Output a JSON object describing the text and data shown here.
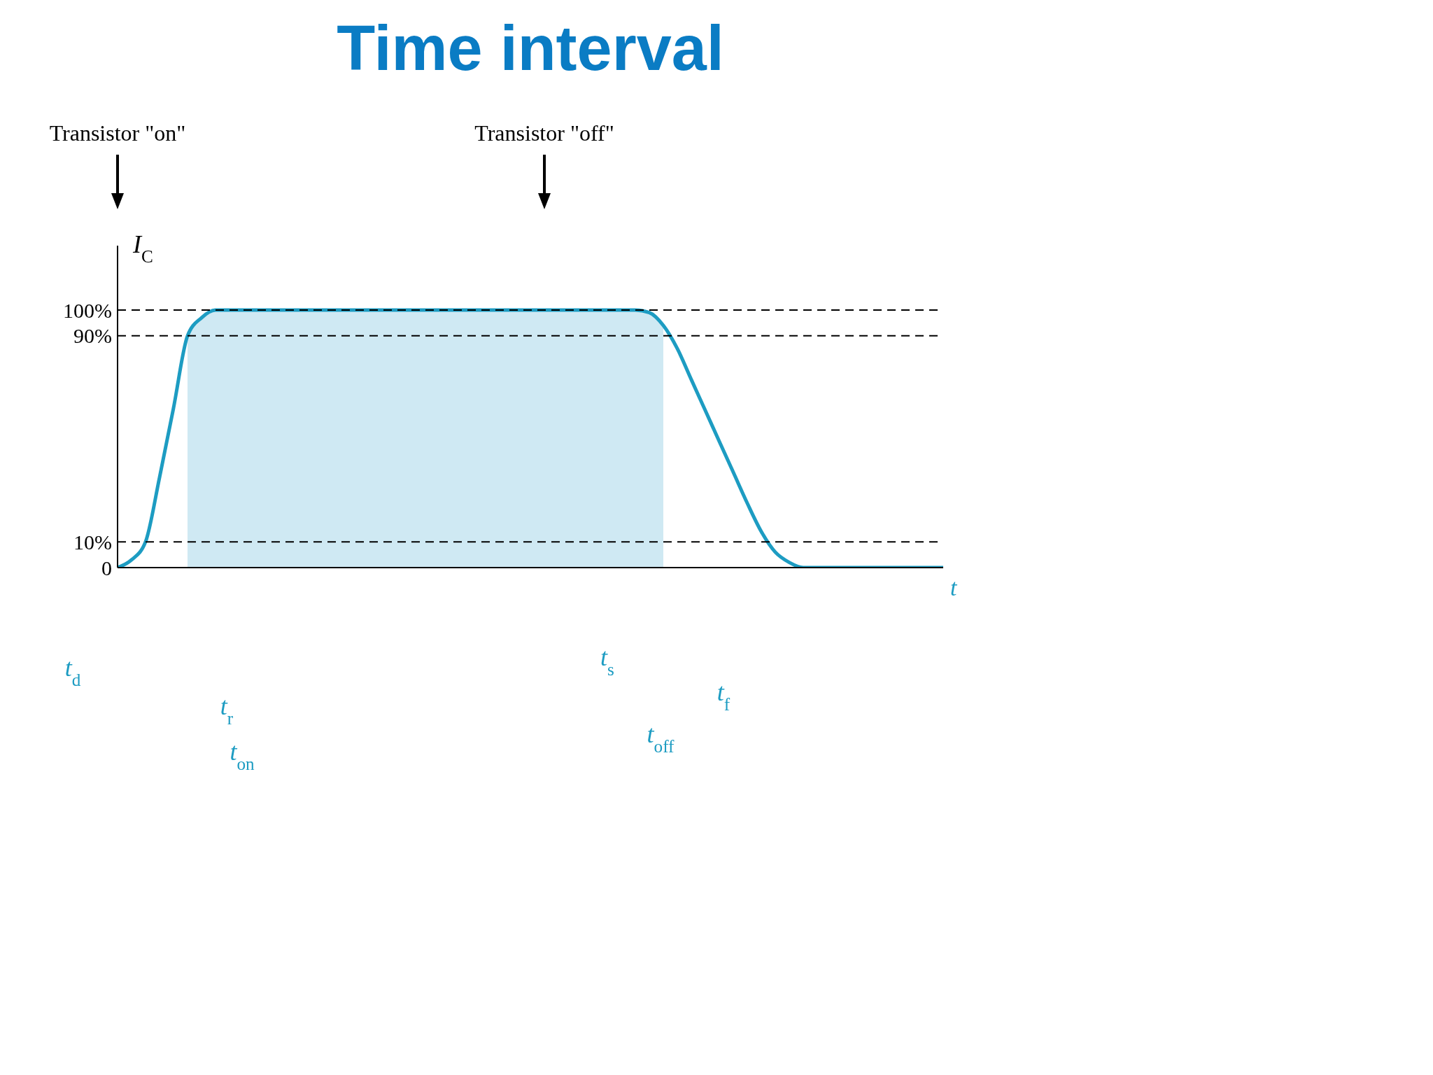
{
  "chart_data": {
    "type": "line",
    "title": "Time interval",
    "xlabel": "t",
    "ylabel": "I$_{C}$",
    "categories": [
      null,
      null,
      null,
      null,
      null,
      null,
      null,
      null,
      null,
      null,
      null,
      null,
      null,
      null,
      null,
      null,
      null,
      null,
      null,
      null,
      null,
      null,
      null,
      null,
      null,
      null,
      null,
      null,
      null,
      null,
      null,
      null,
      null,
      null,
      null,
      null,
      null,
      null,
      null,
      null,
      null,
      null,
      null,
      null,
      null,
      null,
      null,
      null,
      null,
      null,
      null,
      null,
      null,
      null,
      null,
      null,
      null,
      null,
      null,
      null
    ],
    "series": [
      {
        "type": "area",
        "color": "#cfe9f3",
        "values": [
          null,
          null,
          null,
          null,
          null,
          90,
          97,
          100,
          100,
          100,
          100,
          100,
          100,
          100,
          100,
          100,
          100,
          100,
          100,
          100,
          100,
          100,
          100,
          100,
          100,
          100,
          100,
          100,
          100,
          100,
          100,
          100,
          100,
          100,
          100,
          100,
          100,
          100,
          99,
          94,
          null,
          null,
          null,
          null,
          null,
          null,
          null,
          null,
          null,
          null,
          null,
          null,
          null,
          null,
          null,
          null,
          null,
          null,
          null,
          null
        ]
      },
      {
        "color": "#1d9cc2",
        "values": [
          0,
          3,
          10,
          35,
          62,
          90,
          97,
          100,
          100,
          100,
          100,
          100,
          100,
          100,
          100,
          100,
          100,
          100,
          100,
          100,
          100,
          100,
          100,
          100,
          100,
          100,
          100,
          100,
          100,
          100,
          100,
          100,
          100,
          100,
          100,
          100,
          100,
          100,
          99,
          94,
          85,
          73,
          61,
          49,
          37,
          25,
          14,
          6,
          2,
          0,
          0,
          0,
          0,
          0,
          0,
          0,
          0,
          0,
          0,
          0
        ]
      }
    ],
    "ylim": [
      0,
      125
    ],
    "yticks": [
      0,
      {
        "value": 10,
        "label": "10%"
      },
      {
        "value": 90,
        "label": "90%"
      },
      {
        "value": 100,
        "label": "100%"
      }
    ],
    "grid": false,
    "legend": false,
    "ref_lines": [
      {
        "axis": "y",
        "value": 10,
        "color": "#000000",
        "line_style": "dashed"
      },
      {
        "axis": "y",
        "value": 90,
        "color": "#000000",
        "line_style": "dashed"
      },
      {
        "axis": "y",
        "value": 100,
        "color": "#000000",
        "line_style": "dashed"
      }
    ],
    "annotations": [
      "Transistor \"on\"",
      "Transistor \"off\"",
      "t$_{d}$",
      "t$_{r}$",
      "t$_{on}$",
      "t$_{s}$",
      "t$_{f}$",
      "t$_{off}$"
    ]
  }
}
